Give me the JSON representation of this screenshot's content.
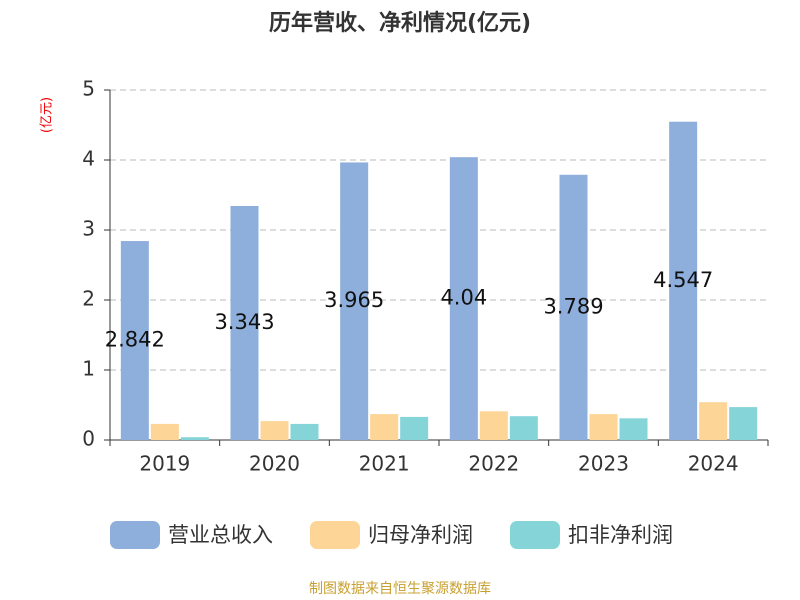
{
  "chart_data": {
    "type": "bar",
    "title": "历年营收、净利情况(亿元)",
    "y_axis_label": "(亿元)",
    "source": "制图数据来自恒生聚源数据库",
    "categories": [
      "2019",
      "2020",
      "2021",
      "2022",
      "2023",
      "2024"
    ],
    "series": [
      {
        "name": "营业总收入",
        "color": "#8eaedb",
        "values": [
          2.842,
          3.343,
          3.965,
          4.04,
          3.789,
          4.547
        ]
      },
      {
        "name": "归母净利润",
        "color": "#fdd597",
        "values": [
          0.23,
          0.27,
          0.37,
          0.41,
          0.37,
          0.54
        ]
      },
      {
        "name": "扣非净利润",
        "color": "#85d4d8",
        "values": [
          0.04,
          0.23,
          0.33,
          0.34,
          0.31,
          0.47
        ]
      }
    ],
    "labeled_series": [
      0
    ],
    "ylim": [
      0,
      5
    ],
    "yticks": [
      0,
      1,
      2,
      3,
      4,
      5
    ],
    "grid": true,
    "legend": "bottom"
  }
}
